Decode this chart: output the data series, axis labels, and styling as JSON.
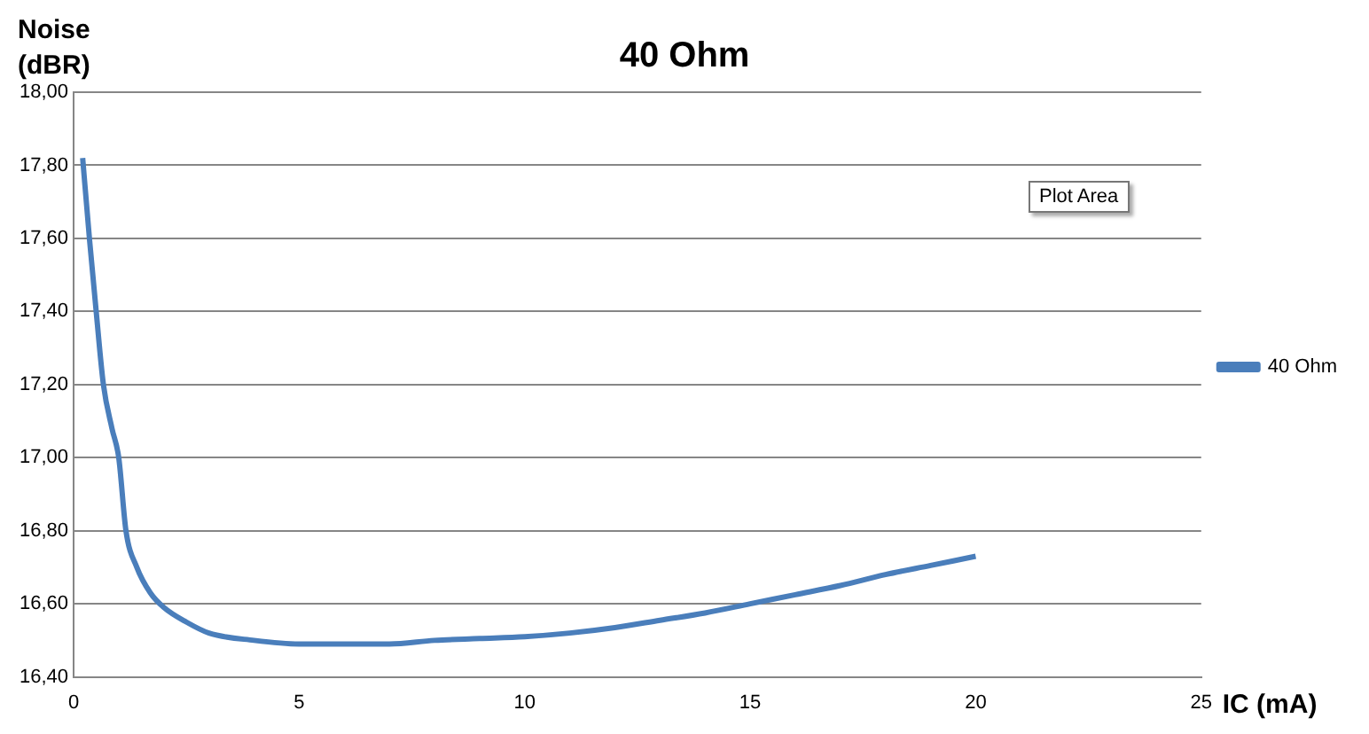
{
  "chart_data": {
    "type": "line",
    "title": "40 Ohm",
    "xlabel": "IC (mA)",
    "ylabel": "Noise (dBR)",
    "annotations": [
      "Plot Area"
    ],
    "x": [
      0.2,
      0.35,
      0.5,
      0.66,
      0.85,
      1.0,
      1.16,
      1.4,
      1.7,
      2,
      2.5,
      3,
      4,
      5,
      6,
      7,
      8,
      9,
      10,
      11,
      12,
      13,
      14,
      15,
      16,
      17,
      18,
      19,
      20
    ],
    "series": [
      {
        "name": "40 Ohm",
        "color": "#4a7ebb",
        "values": [
          17.82,
          17.6,
          17.4,
          17.2,
          17.08,
          17.0,
          16.8,
          16.7,
          16.63,
          16.59,
          16.55,
          16.52,
          16.5,
          16.49,
          16.49,
          16.49,
          16.5,
          16.505,
          16.51,
          16.52,
          16.535,
          16.555,
          16.575,
          16.6,
          16.625,
          16.65,
          16.68,
          16.705,
          16.73
        ]
      }
    ],
    "xlim": [
      0,
      25
    ],
    "xticks": [
      0,
      5,
      10,
      15,
      20,
      25
    ],
    "ylim": [
      16.4,
      18
    ],
    "yticks": [
      {
        "value": 16.4,
        "label": "16,40"
      },
      {
        "value": 16.6,
        "label": "16,60"
      },
      {
        "value": 16.8,
        "label": "16,80"
      },
      {
        "value": 17,
        "label": "17,00"
      },
      {
        "value": 17.2,
        "label": "17,20"
      },
      {
        "value": 17.4,
        "label": "17,40"
      },
      {
        "value": 17.6,
        "label": "17,60"
      },
      {
        "value": 17.8,
        "label": "17,80"
      },
      {
        "value": 18,
        "label": "18,00"
      }
    ],
    "grid": "y",
    "legend": "right",
    "marker": "none",
    "line_style": "solid"
  }
}
